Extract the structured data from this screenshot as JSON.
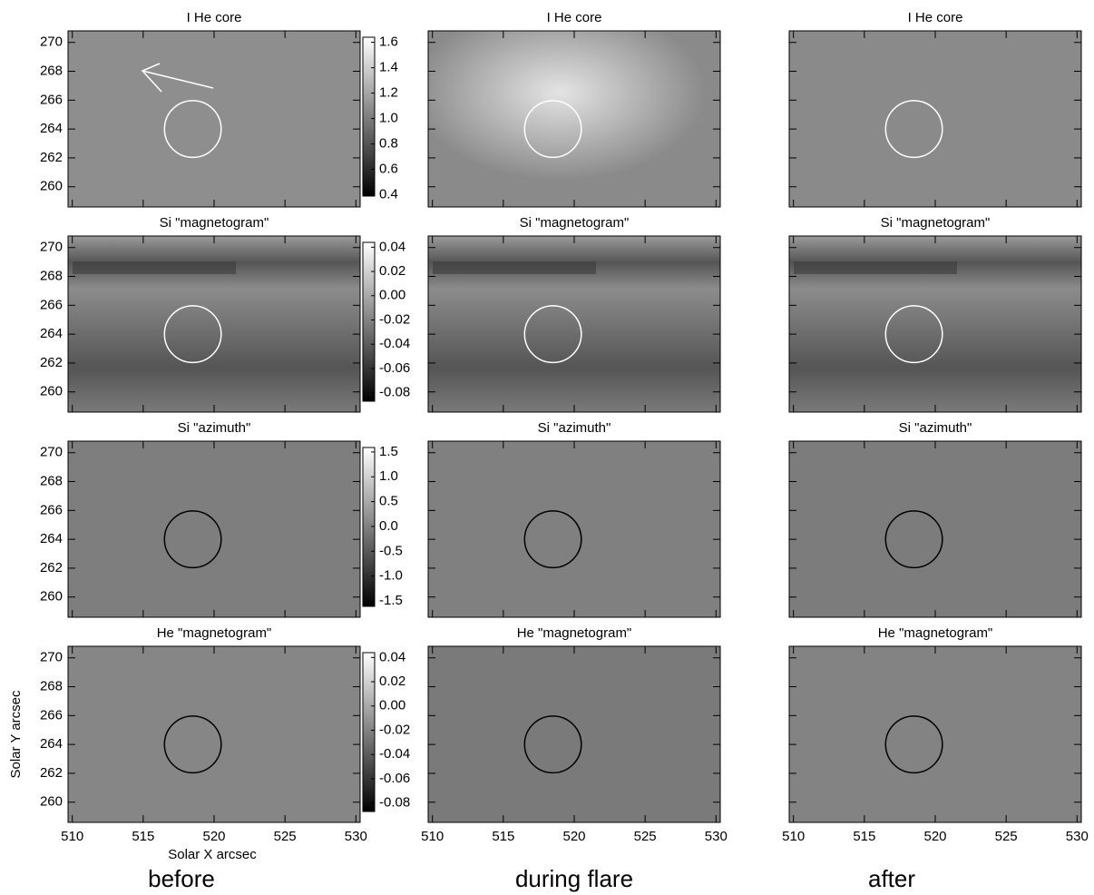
{
  "column_labels": [
    "before",
    "during flare",
    "after"
  ],
  "chart_data": [
    {
      "type": "image",
      "title": "I He core",
      "xlim": [
        509.7,
        530.3
      ],
      "ylim": [
        258.6,
        270.8
      ],
      "xticks": [
        510,
        515,
        520,
        525,
        530
      ],
      "yticks": [
        260,
        262,
        264,
        266,
        268,
        270
      ],
      "circle": {
        "x": 518.5,
        "y": 264,
        "r": 2,
        "color": "#ffffff"
      },
      "colorbar": {
        "lim": [
          0.39,
          1.64
        ],
        "ticks": [
          0.4,
          0.6,
          0.8,
          {
            "value": 1,
            "label": "1.0"
          },
          1.2,
          1.4,
          1.6
        ]
      }
    },
    {
      "type": "image",
      "title": "I He core",
      "xlim": [
        509.7,
        530.3
      ],
      "ylim": [
        258.6,
        270.8
      ],
      "xticks": [
        510,
        515,
        520,
        525,
        530
      ],
      "yticks": [
        260,
        262,
        264,
        266,
        268,
        270
      ],
      "circle": {
        "x": 518.5,
        "y": 264,
        "r": 2,
        "color": "#ffffff"
      }
    },
    {
      "type": "image",
      "title": "I He core",
      "xlim": [
        509.7,
        530.3
      ],
      "ylim": [
        258.6,
        270.8
      ],
      "xticks": [
        510,
        515,
        520,
        525,
        530
      ],
      "yticks": [
        260,
        262,
        264,
        266,
        268,
        270
      ],
      "circle": {
        "x": 518.5,
        "y": 264,
        "r": 2,
        "color": "#ffffff"
      }
    },
    {
      "type": "image",
      "title": "Si \"magnetogram\"",
      "xlim": [
        509.7,
        530.3
      ],
      "ylim": [
        258.6,
        270.8
      ],
      "xticks": [
        510,
        515,
        520,
        525,
        530
      ],
      "yticks": [
        260,
        262,
        264,
        266,
        268,
        270
      ],
      "circle": {
        "x": 518.5,
        "y": 264,
        "r": 2,
        "color": "#ffffff"
      },
      "colorbar": {
        "lim": [
          -0.087,
          0.044
        ],
        "ticks": [
          -0.08,
          -0.06,
          -0.04,
          -0.02,
          {
            "value": 0,
            "label": "0.00"
          },
          0.02,
          0.04
        ]
      }
    },
    {
      "type": "image",
      "title": "Si \"magnetogram\"",
      "xlim": [
        509.7,
        530.3
      ],
      "ylim": [
        258.6,
        270.8
      ],
      "xticks": [
        510,
        515,
        520,
        525,
        530
      ],
      "yticks": [
        260,
        262,
        264,
        266,
        268,
        270
      ],
      "circle": {
        "x": 518.5,
        "y": 264,
        "r": 2,
        "color": "#ffffff"
      }
    },
    {
      "type": "image",
      "title": "Si \"magnetogram\"",
      "xlim": [
        509.7,
        530.3
      ],
      "ylim": [
        258.6,
        270.8
      ],
      "xticks": [
        510,
        515,
        520,
        525,
        530
      ],
      "yticks": [
        260,
        262,
        264,
        266,
        268,
        270
      ],
      "circle": {
        "x": 518.5,
        "y": 264,
        "r": 2,
        "color": "#ffffff"
      }
    },
    {
      "type": "image",
      "title": "Si \"azimuth\"",
      "xlim": [
        509.7,
        530.3
      ],
      "ylim": [
        258.6,
        270.8
      ],
      "xticks": [
        510,
        515,
        520,
        525,
        530
      ],
      "yticks": [
        260,
        262,
        264,
        266,
        268,
        270
      ],
      "circle": {
        "x": 518.5,
        "y": 264,
        "r": 2,
        "color": "#000000"
      },
      "colorbar": {
        "lim": [
          -1.61,
          1.59
        ],
        "ticks": [
          -1.5,
          {
            "value": -1,
            "label": "-1.0"
          },
          -0.5,
          {
            "value": 0,
            "label": "0.0"
          },
          0.5,
          {
            "value": 1,
            "label": "1.0"
          },
          1.5
        ]
      }
    },
    {
      "type": "image",
      "title": "Si \"azimuth\"",
      "xlim": [
        509.7,
        530.3
      ],
      "ylim": [
        258.6,
        270.8
      ],
      "xticks": [
        510,
        515,
        520,
        525,
        530
      ],
      "yticks": [
        260,
        262,
        264,
        266,
        268,
        270
      ],
      "circle": {
        "x": 518.5,
        "y": 264,
        "r": 2,
        "color": "#000000"
      }
    },
    {
      "type": "image",
      "title": "Si \"azimuth\"",
      "xlim": [
        509.7,
        530.3
      ],
      "ylim": [
        258.6,
        270.8
      ],
      "xticks": [
        510,
        515,
        520,
        525,
        530
      ],
      "yticks": [
        260,
        262,
        264,
        266,
        268,
        270
      ],
      "circle": {
        "x": 518.5,
        "y": 264,
        "r": 2,
        "color": "#000000"
      }
    },
    {
      "type": "image",
      "title": "He \"magnetogram\"",
      "xlim": [
        509.7,
        530.3
      ],
      "ylim": [
        258.6,
        270.8
      ],
      "xticks": [
        510,
        515,
        520,
        525,
        530
      ],
      "yticks": [
        260,
        262,
        264,
        266,
        268,
        270
      ],
      "circle": {
        "x": 518.5,
        "y": 264,
        "r": 2,
        "color": "#000000"
      },
      "xlabel": "Solar X arcsec",
      "ylabel": "Solar Y arcsec",
      "colorbar": {
        "lim": [
          -0.087,
          0.044
        ],
        "ticks": [
          -0.08,
          -0.06,
          -0.04,
          -0.02,
          {
            "value": 0,
            "label": "0.00"
          },
          0.02,
          0.04
        ]
      }
    },
    {
      "type": "image",
      "title": "He \"magnetogram\"",
      "xlim": [
        509.7,
        530.3
      ],
      "ylim": [
        258.6,
        270.8
      ],
      "xticks": [
        510,
        515,
        520,
        525,
        530
      ],
      "yticks": [
        260,
        262,
        264,
        266,
        268,
        270
      ],
      "circle": {
        "x": 518.5,
        "y": 264,
        "r": 2,
        "color": "#000000"
      }
    },
    {
      "type": "image",
      "title": "He \"magnetogram\"",
      "xlim": [
        509.7,
        530.3
      ],
      "ylim": [
        258.6,
        270.8
      ],
      "xticks": [
        510,
        515,
        520,
        525,
        530
      ],
      "yticks": [
        260,
        262,
        264,
        266,
        268,
        270
      ],
      "circle": {
        "x": 518.5,
        "y": 264,
        "r": 2,
        "color": "#000000"
      }
    }
  ]
}
